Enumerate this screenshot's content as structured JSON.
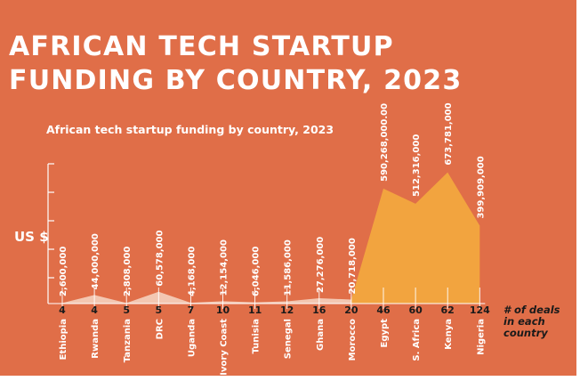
{
  "page_title": "AFRICAN TECH STARTUP\nFUNDING BY COUNTRY, 2023",
  "colors": {
    "background": "#e06e48",
    "area_large": "#f2a43f",
    "area_small": "#f3c7b2",
    "text": "#ffffff",
    "axis_text": "#1a1a1a"
  },
  "chart_data": {
    "type": "area",
    "title": "African tech startup funding by country, 2023",
    "ylabel": "US $",
    "xlabel": "# of deals in each country",
    "ylim": [
      0,
      800000000
    ],
    "countries": [
      "Ethiopia",
      "Rwanda",
      "Tanzania",
      "DRC",
      "Uganda",
      "Ivory Coast",
      "Tunisia",
      "Senegal",
      "Ghana",
      "Morocco",
      "Egypt",
      "S. Africa",
      "Kenya",
      "Nigeria"
    ],
    "deals": [
      "4",
      "4",
      "5",
      "5",
      "7",
      "10",
      "11",
      "12",
      "16",
      "20",
      "46",
      "60",
      "62",
      "124"
    ],
    "values": [
      2600000,
      44000000,
      2808000,
      60578000,
      4168000,
      12154000,
      6046000,
      11586000,
      27276000,
      20718000,
      590268000,
      512316000,
      673781000,
      399909000
    ],
    "value_labels": [
      "2,600,000",
      "44,000,000",
      "2,808,000",
      "60,578,000",
      "4,168,000",
      "12,154,000",
      "6,046,000",
      "11,586,000",
      "27,276,000",
      "20,718,000",
      "590,268,000.00",
      "512,316,000",
      "673,781,000",
      "399,909,000"
    ]
  }
}
